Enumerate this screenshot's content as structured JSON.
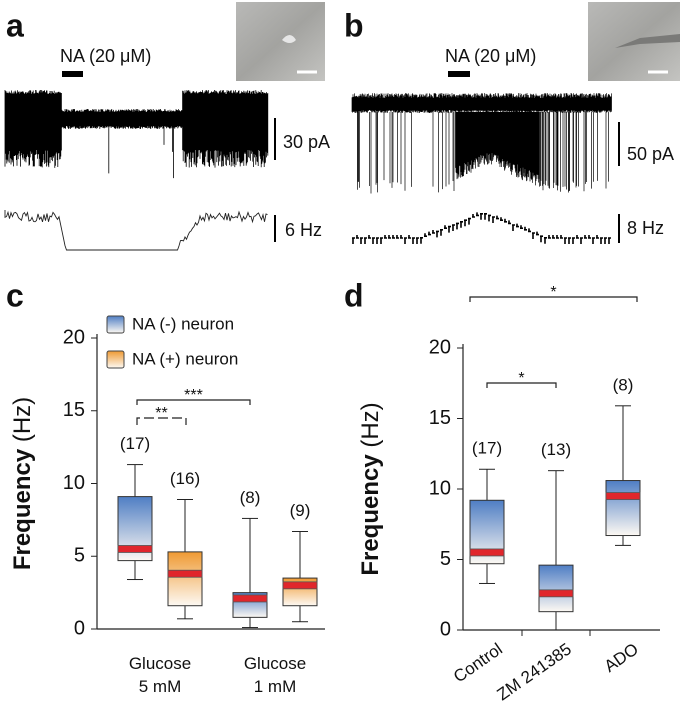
{
  "panels": {
    "a": {
      "panel_label": "a",
      "drug_label": "NA (20 μM)",
      "current_scale": "30 pA",
      "rate_scale": "6 Hz"
    },
    "b": {
      "panel_label": "b",
      "drug_label": "NA (20 μM)",
      "current_scale": "50 pA",
      "rate_scale": "8 Hz"
    }
  },
  "chart_data": [
    {
      "type": "box",
      "panel_label": "c",
      "ylabel": "Frequency",
      "yunit": "(Hz)",
      "categories": [
        "Glucose 5 mM",
        "Glucose 1 mM"
      ],
      "ylim": [
        0,
        20
      ],
      "yticks": [
        0,
        5,
        10,
        15,
        20
      ],
      "legend": true,
      "series": [
        {
          "name": "NA (-) neuron",
          "color": "#4f7ec4",
          "min": [
            3.4,
            0.1
          ],
          "q1": [
            4.7,
            0.8
          ],
          "median": [
            5.5,
            2.1
          ],
          "q3": [
            9.1,
            2.5
          ],
          "max": [
            11.3,
            7.6
          ],
          "n_labels": [
            "(17)",
            "(8)"
          ]
        },
        {
          "name": "NA (+) neuron",
          "color": "#ef9a33",
          "min": [
            0.7,
            0.5
          ],
          "q1": [
            1.6,
            1.6
          ],
          "median": [
            3.8,
            3.0
          ],
          "q3": [
            5.3,
            3.5
          ],
          "max": [
            8.9,
            6.7
          ],
          "n_labels": [
            "(16)",
            "(9)"
          ]
        }
      ],
      "annotations": [
        "**",
        "***"
      ]
    },
    {
      "type": "box",
      "panel_label": "d",
      "ylabel": "Frequency",
      "yunit": "(Hz)",
      "categories": [
        "Control",
        "ZM 241385",
        "ADO"
      ],
      "ylim": [
        0,
        20
      ],
      "yticks": [
        0,
        5,
        10,
        15,
        20
      ],
      "legend": false,
      "series": [
        {
          "name": "",
          "color": "#4f7ec4",
          "min": [
            3.3,
            0.0,
            6.0
          ],
          "q1": [
            4.7,
            1.3,
            6.7
          ],
          "median": [
            5.5,
            2.6,
            9.5
          ],
          "q3": [
            9.2,
            4.6,
            10.6
          ],
          "max": [
            11.4,
            11.3,
            15.9
          ],
          "n_labels": [
            "(17)",
            "(13)",
            "(8)"
          ]
        }
      ],
      "annotations": [
        "*",
        "*"
      ]
    }
  ]
}
